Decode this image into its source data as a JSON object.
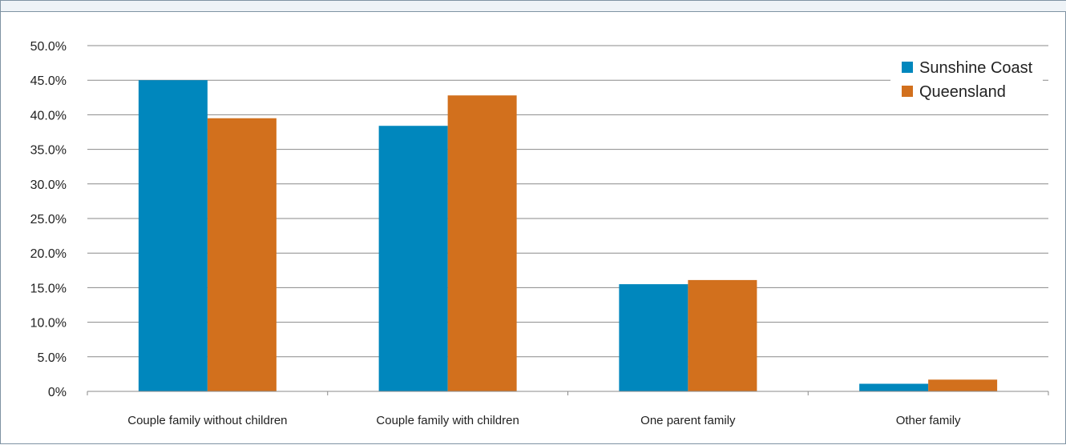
{
  "chart_data": {
    "type": "bar",
    "title": "",
    "xlabel": "",
    "ylabel": "",
    "categories": [
      "Couple family without children",
      "Couple family with children",
      "One parent family",
      "Other family"
    ],
    "series": [
      {
        "name": "Sunshine Coast",
        "color": "#0087bd",
        "values": [
          45.0,
          38.4,
          15.5,
          1.1
        ]
      },
      {
        "name": "Queensland",
        "color": "#d2701d",
        "values": [
          39.5,
          42.8,
          16.1,
          1.7
        ]
      }
    ],
    "ylim": [
      0,
      50
    ],
    "yticks": [
      "0%",
      "5.0%",
      "10.0%",
      "15.0%",
      "20.0%",
      "25.0%",
      "30.0%",
      "35.0%",
      "40.0%",
      "45.0%",
      "50.0%"
    ],
    "grid": true,
    "legend_position": "top-right"
  }
}
